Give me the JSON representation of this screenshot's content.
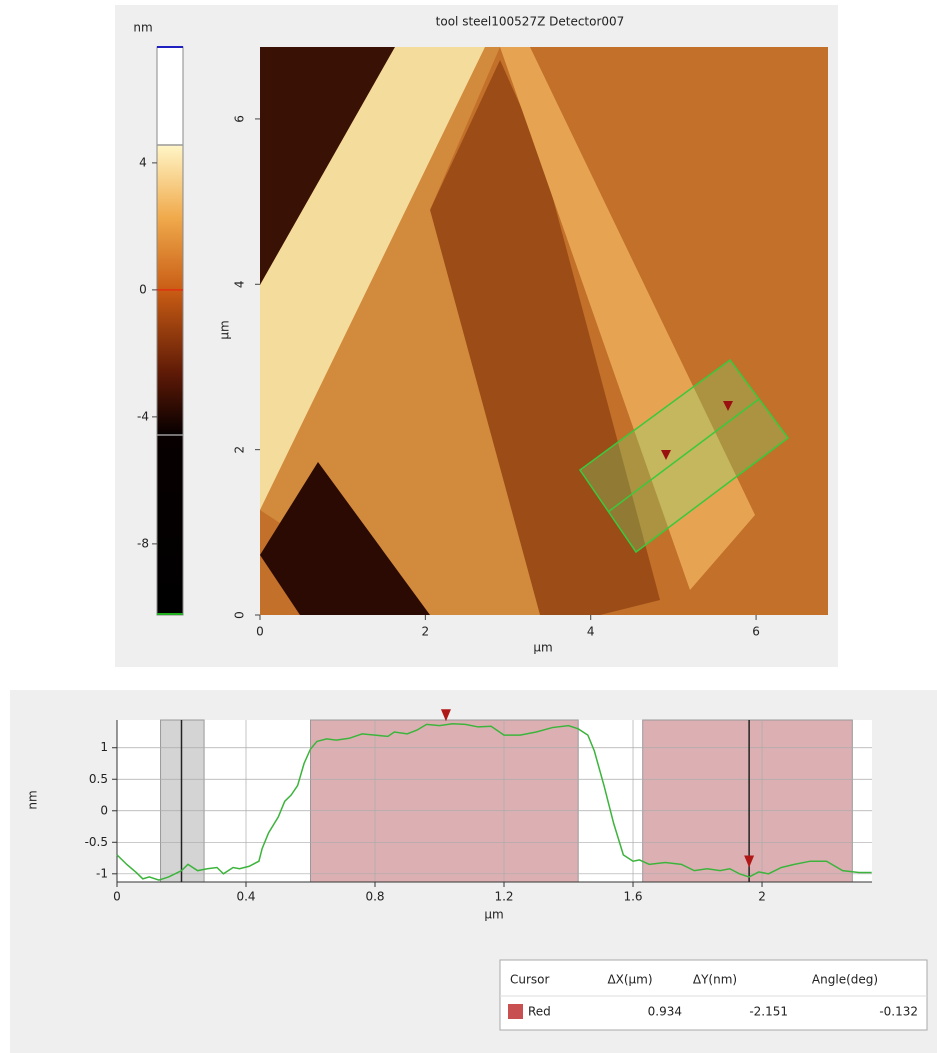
{
  "chart_data": [
    {
      "type": "image",
      "title": "tool steel100527Z Detector007",
      "xlabel": "μm",
      "ylabel": "μm",
      "xlim": [
        0,
        6.87
      ],
      "ylim": [
        0,
        6.87
      ],
      "xticks": [
        0,
        2,
        4,
        6
      ],
      "yticks": [
        0,
        2,
        4,
        6
      ],
      "colorbar": {
        "label": "nm",
        "lim": [
          -10.24,
          7.65
        ],
        "ticks": [
          -8,
          -4,
          0,
          4
        ]
      }
    },
    {
      "type": "line",
      "xlabel": "μm",
      "ylabel": "nm",
      "xlim": [
        0,
        2.341
      ],
      "ylim": [
        -1.13,
        1.44
      ],
      "xticks": [
        0,
        0.4,
        0.8,
        1.2,
        1.6,
        2
      ],
      "yticks": [
        -1,
        -0.5,
        0,
        0.5,
        1
      ],
      "grid": true,
      "regions": [
        {
          "x": [
            0.135,
            0.27
          ],
          "color": "#d4d4d4"
        },
        {
          "x": [
            0.6,
            1.43
          ],
          "color": "#dcb0b3"
        },
        {
          "x": [
            1.63,
            2.28
          ],
          "color": "#dcb0b3"
        }
      ],
      "cursors": [
        0.2,
        1.96
      ],
      "markers": [
        {
          "x": 1.02,
          "y": 1.42,
          "color": "#b01818"
        },
        {
          "x": 1.96,
          "y": -0.9,
          "color": "#b01818"
        }
      ],
      "x": [
        0,
        0.03,
        0.06,
        0.08,
        0.1,
        0.13,
        0.16,
        0.2,
        0.22,
        0.25,
        0.28,
        0.31,
        0.33,
        0.36,
        0.38,
        0.41,
        0.44,
        0.45,
        0.47,
        0.5,
        0.52,
        0.54,
        0.56,
        0.58,
        0.6,
        0.62,
        0.65,
        0.68,
        0.72,
        0.76,
        0.8,
        0.84,
        0.86,
        0.9,
        0.93,
        0.96,
        1.0,
        1.04,
        1.08,
        1.12,
        1.16,
        1.2,
        1.25,
        1.3,
        1.35,
        1.4,
        1.43,
        1.46,
        1.48,
        1.51,
        1.54,
        1.57,
        1.6,
        1.62,
        1.65,
        1.7,
        1.75,
        1.79,
        1.83,
        1.87,
        1.9,
        1.93,
        1.96,
        1.99,
        2.02,
        2.06,
        2.1,
        2.15,
        2.2,
        2.25,
        2.3,
        2.34
      ],
      "series": [
        {
          "color": "#3cb43c",
          "values": [
            -0.7,
            -0.85,
            -0.98,
            -1.08,
            -1.05,
            -1.1,
            -1.05,
            -0.95,
            -0.85,
            -0.95,
            -0.92,
            -0.9,
            -1.0,
            -0.9,
            -0.92,
            -0.88,
            -0.8,
            -0.6,
            -0.35,
            -0.1,
            0.15,
            0.25,
            0.4,
            0.75,
            0.98,
            1.1,
            1.14,
            1.12,
            1.15,
            1.22,
            1.2,
            1.18,
            1.25,
            1.22,
            1.28,
            1.37,
            1.35,
            1.38,
            1.37,
            1.33,
            1.34,
            1.2,
            1.2,
            1.25,
            1.32,
            1.35,
            1.3,
            1.2,
            0.95,
            0.4,
            -0.2,
            -0.7,
            -0.8,
            -0.78,
            -0.85,
            -0.82,
            -0.85,
            -0.95,
            -0.92,
            -0.95,
            -0.92,
            -1.0,
            -1.05,
            -0.97,
            -1.0,
            -0.9,
            -0.85,
            -0.8,
            -0.8,
            -0.95,
            -0.98,
            -0.98
          ]
        }
      ]
    }
  ],
  "table": {
    "header": [
      "Cursor",
      "ΔX(μm)",
      "ΔY(nm)",
      "Angle(deg)"
    ],
    "rows": [
      [
        "Red",
        0.934,
        -2.151,
        -0.132
      ]
    ],
    "swatch": "#c85050"
  }
}
